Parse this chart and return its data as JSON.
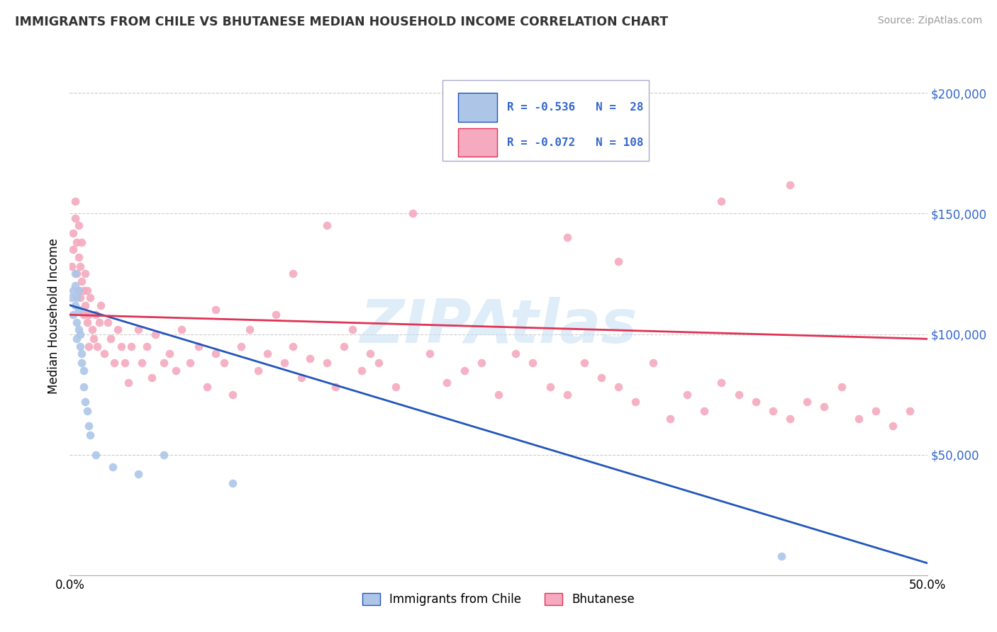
{
  "title": "IMMIGRANTS FROM CHILE VS BHUTANESE MEDIAN HOUSEHOLD INCOME CORRELATION CHART",
  "source": "Source: ZipAtlas.com",
  "ylabel": "Median Household Income",
  "legend_label1": "Immigrants from Chile",
  "legend_label2": "Bhutanese",
  "legend_text1": "R = -0.536   N =  28",
  "legend_text2": "R = -0.072   N = 108",
  "watermark": "ZIPAtlas",
  "color_chile": "#adc6e8",
  "color_bhutanese": "#f5aabf",
  "color_line_chile": "#2255bb",
  "color_line_bhutanese": "#e03355",
  "color_tick_label": "#3366cc",
  "xmin": 0.0,
  "xmax": 0.5,
  "ymin": 0,
  "ymax": 215000,
  "chile_x": [
    0.001,
    0.002,
    0.002,
    0.003,
    0.003,
    0.003,
    0.004,
    0.004,
    0.004,
    0.005,
    0.005,
    0.005,
    0.006,
    0.006,
    0.007,
    0.007,
    0.008,
    0.008,
    0.009,
    0.01,
    0.011,
    0.012,
    0.015,
    0.025,
    0.04,
    0.055,
    0.095,
    0.415
  ],
  "chile_y": [
    115000,
    118000,
    108000,
    125000,
    112000,
    120000,
    105000,
    115000,
    98000,
    110000,
    102000,
    118000,
    95000,
    100000,
    88000,
    92000,
    85000,
    78000,
    72000,
    68000,
    62000,
    58000,
    50000,
    45000,
    42000,
    50000,
    38000,
    8000
  ],
  "bhutanese_x": [
    0.001,
    0.002,
    0.002,
    0.003,
    0.003,
    0.004,
    0.004,
    0.005,
    0.005,
    0.005,
    0.006,
    0.006,
    0.007,
    0.007,
    0.008,
    0.008,
    0.009,
    0.009,
    0.01,
    0.01,
    0.011,
    0.011,
    0.012,
    0.013,
    0.014,
    0.015,
    0.016,
    0.017,
    0.018,
    0.02,
    0.022,
    0.024,
    0.026,
    0.028,
    0.03,
    0.032,
    0.034,
    0.036,
    0.04,
    0.042,
    0.045,
    0.048,
    0.05,
    0.055,
    0.058,
    0.062,
    0.065,
    0.07,
    0.075,
    0.08,
    0.085,
    0.09,
    0.095,
    0.1,
    0.105,
    0.11,
    0.115,
    0.12,
    0.125,
    0.13,
    0.135,
    0.14,
    0.15,
    0.155,
    0.16,
    0.165,
    0.17,
    0.175,
    0.18,
    0.19,
    0.2,
    0.21,
    0.22,
    0.23,
    0.24,
    0.25,
    0.26,
    0.27,
    0.28,
    0.29,
    0.3,
    0.31,
    0.32,
    0.33,
    0.34,
    0.35,
    0.36,
    0.37,
    0.38,
    0.39,
    0.4,
    0.41,
    0.42,
    0.43,
    0.44,
    0.45,
    0.46,
    0.47,
    0.48,
    0.49,
    0.38,
    0.29,
    0.15,
    0.22,
    0.32,
    0.13,
    0.085,
    0.42
  ],
  "bhutanese_y": [
    128000,
    135000,
    142000,
    148000,
    155000,
    138000,
    125000,
    132000,
    118000,
    145000,
    128000,
    115000,
    138000,
    122000,
    118000,
    108000,
    112000,
    125000,
    105000,
    118000,
    108000,
    95000,
    115000,
    102000,
    98000,
    108000,
    95000,
    105000,
    112000,
    92000,
    105000,
    98000,
    88000,
    102000,
    95000,
    88000,
    80000,
    95000,
    102000,
    88000,
    95000,
    82000,
    100000,
    88000,
    92000,
    85000,
    102000,
    88000,
    95000,
    78000,
    92000,
    88000,
    75000,
    95000,
    102000,
    85000,
    92000,
    108000,
    88000,
    95000,
    82000,
    90000,
    88000,
    78000,
    95000,
    102000,
    85000,
    92000,
    88000,
    78000,
    150000,
    92000,
    80000,
    85000,
    88000,
    75000,
    92000,
    88000,
    78000,
    75000,
    88000,
    82000,
    78000,
    72000,
    88000,
    65000,
    75000,
    68000,
    80000,
    75000,
    72000,
    68000,
    65000,
    72000,
    70000,
    78000,
    65000,
    68000,
    62000,
    68000,
    155000,
    140000,
    145000,
    175000,
    130000,
    125000,
    110000,
    162000
  ],
  "chile_line_x": [
    0.0,
    0.5
  ],
  "chile_line_y": [
    112000,
    5000
  ],
  "bhu_line_x": [
    0.0,
    0.5
  ],
  "bhu_line_y": [
    108000,
    98000
  ]
}
